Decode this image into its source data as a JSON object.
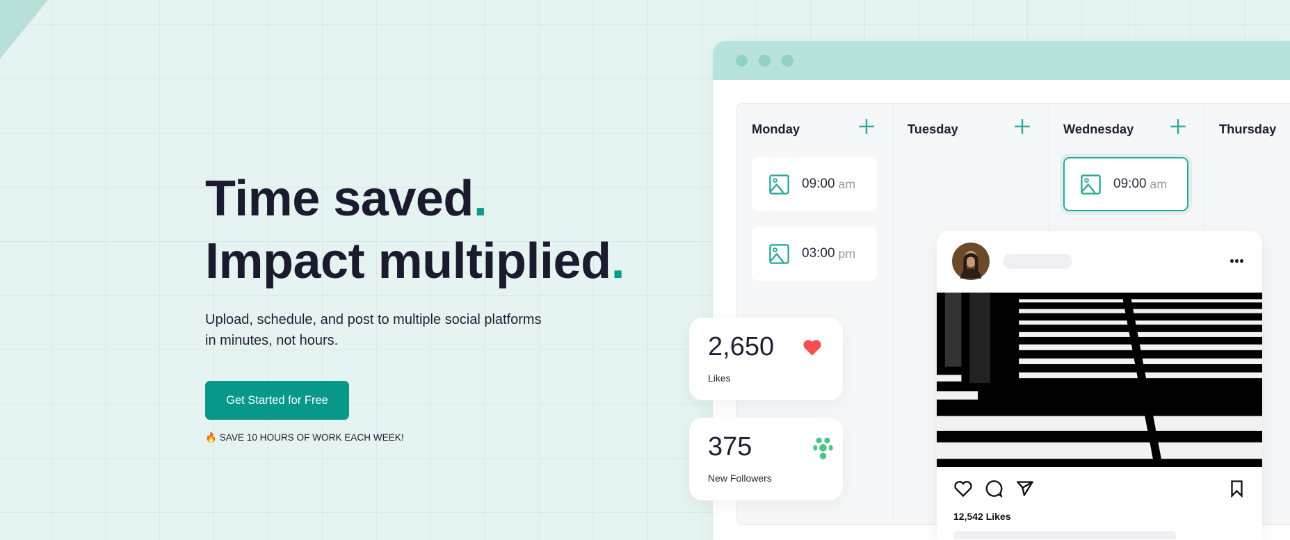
{
  "hero": {
    "title_line1": "Time saved",
    "title_line2": "Impact multiplied",
    "title_punct": ".",
    "subtitle": "Upload, schedule, and post to multiple social platforms in minutes, not hours.",
    "cta_label": "Get Started for Free",
    "note_icon": "🔥",
    "note": "SAVE 10 HOURS OF WORK EACH WEEK!",
    "accent": "#07988a"
  },
  "calendar": {
    "days": [
      "Monday",
      "Tuesday",
      "Wednesday",
      "Thursday"
    ],
    "slots": {
      "monday": [
        {
          "time": "09:00",
          "ampm": "am"
        },
        {
          "time": "03:00",
          "ampm": "pm"
        }
      ],
      "wednesday": [
        {
          "time": "09:00",
          "ampm": "am"
        }
      ]
    }
  },
  "stats": [
    {
      "value": "2,650",
      "label": "Likes",
      "icon": "heart-icon",
      "color": "#f5504f"
    },
    {
      "value": "375",
      "label": "New Followers",
      "icon": "followers-icon",
      "color": "#4cc38a"
    }
  ],
  "post": {
    "likes": "12,542 Likes"
  }
}
